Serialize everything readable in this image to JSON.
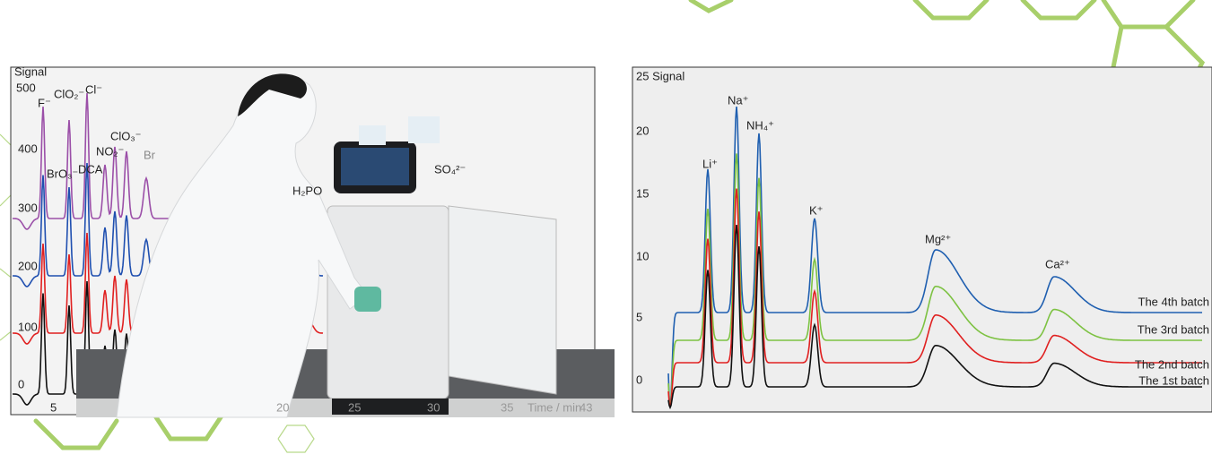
{
  "left_chromatogram": {
    "y_axis_label": "Signal",
    "y_labels": [
      "500",
      "400",
      "300",
      "200",
      "100",
      "0"
    ],
    "peak_labels": [
      "F⁻",
      "ClO₂⁻",
      "Cl⁻",
      "ClO₃⁻",
      "NO₂⁻",
      "BrO₃⁻",
      "DCA",
      "Br",
      "H₂PO",
      "SO₄²⁻"
    ],
    "x_labels": [
      "5",
      "20",
      "25",
      "30",
      "35",
      "Time / min",
      "43"
    ]
  },
  "right_chromatogram": {
    "y_axis_label": "25 Signal",
    "y_labels": [
      "20",
      "15",
      "10",
      "5",
      "0"
    ],
    "peak_labels": [
      "Li⁺",
      "Na⁺",
      "NH₄⁺",
      "K⁺",
      "Mg²⁺",
      "Ca²⁺"
    ],
    "batches": [
      "The 4th batch",
      "The 3rd batch",
      "The 2nd batch",
      "The 1st batch"
    ]
  }
}
